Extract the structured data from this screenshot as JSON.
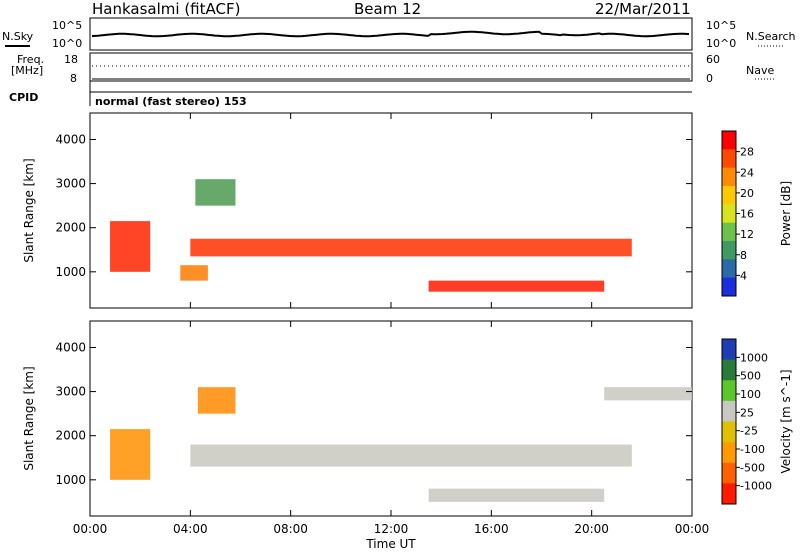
{
  "header": {
    "station": "Hankasalmi (fitACF)",
    "beam": "Beam 12",
    "date": "22/Mar/2011"
  },
  "panels": {
    "nsky_label": "N.Sky",
    "nsky_scale_top": "10^5",
    "nsky_scale_bottom": "10^0",
    "nsearch_label": "N.Search",
    "nsearch_scale_top": "10^5",
    "nsearch_scale_bottom": "10^0",
    "freq_label_line1": "Freq.",
    "freq_label_line2": "[MHz]",
    "freq_top": "18",
    "freq_bottom": "8",
    "nave_label": "Nave",
    "nave_top": "60",
    "nave_bottom": "0",
    "cpid_label": "CPID",
    "cpid_value": "normal (fast stereo) 153"
  },
  "chart_data": [
    {
      "type": "heatmap",
      "name": "power",
      "ylabel": "Slant Range [km]",
      "xlabel": "",
      "y_ticks": [
        1000,
        2000,
        3000,
        4000
      ],
      "ylim": [
        180,
        4600
      ],
      "xlim": [
        0,
        24
      ],
      "colorbar": {
        "label": "Power [dB]",
        "ticks": [
          "28",
          "24",
          "20",
          "16",
          "12",
          "8",
          "4"
        ],
        "colors": [
          "#ff0000",
          "#ff4a00",
          "#ff8c00",
          "#ffc800",
          "#d8e21e",
          "#6cc24a",
          "#3f9a60",
          "#2a6aa8",
          "#1a2ee0"
        ]
      },
      "regions": [
        {
          "t0": 0.8,
          "t1": 2.4,
          "r0": 1000,
          "r1": 2150,
          "color": "#ff2400"
        },
        {
          "t0": 3.6,
          "t1": 4.7,
          "r0": 800,
          "r1": 1150,
          "color": "#ff7a00"
        },
        {
          "t0": 4.2,
          "t1": 5.8,
          "r0": 2500,
          "r1": 3100,
          "color": "#4c9a50"
        },
        {
          "t0": 4.0,
          "t1": 21.6,
          "r0": 1350,
          "r1": 1750,
          "color": "#ff3000"
        },
        {
          "t0": 13.5,
          "t1": 20.5,
          "r0": 550,
          "r1": 800,
          "color": "#ff1a00"
        }
      ]
    },
    {
      "type": "heatmap",
      "name": "velocity",
      "ylabel": "Slant Range [km]",
      "xlabel": "Time UT",
      "x_ticks": [
        "00:00",
        "04:00",
        "08:00",
        "12:00",
        "16:00",
        "20:00",
        "00:00"
      ],
      "y_ticks": [
        1000,
        2000,
        3000,
        4000
      ],
      "ylim": [
        180,
        4600
      ],
      "xlim": [
        0,
        24
      ],
      "colorbar": {
        "label": "Velocity [m s^-1]",
        "ticks": [
          "1000",
          "500",
          "100",
          "25",
          "-25",
          "-100",
          "-500",
          "-1000"
        ],
        "colors": [
          "#1e3cb4",
          "#2a7a3a",
          "#5ac82a",
          "#c8c8c0",
          "#e0c000",
          "#ff9a00",
          "#ff6000",
          "#ff1a00"
        ]
      },
      "regions": [
        {
          "t0": 0.8,
          "t1": 2.4,
          "r0": 1000,
          "r1": 2150,
          "color": "#ff9000"
        },
        {
          "t0": 4.3,
          "t1": 5.8,
          "r0": 2500,
          "r1": 3100,
          "color": "#ff8a00"
        },
        {
          "t0": 4.0,
          "t1": 21.6,
          "r0": 1300,
          "r1": 1800,
          "color": "#c8c8c0"
        },
        {
          "t0": 13.5,
          "t1": 20.5,
          "r0": 500,
          "r1": 800,
          "color": "#c8c8c0"
        },
        {
          "t0": 20.5,
          "t1": 24,
          "r0": 2800,
          "r1": 3100,
          "color": "#c8c8c0"
        }
      ]
    }
  ]
}
